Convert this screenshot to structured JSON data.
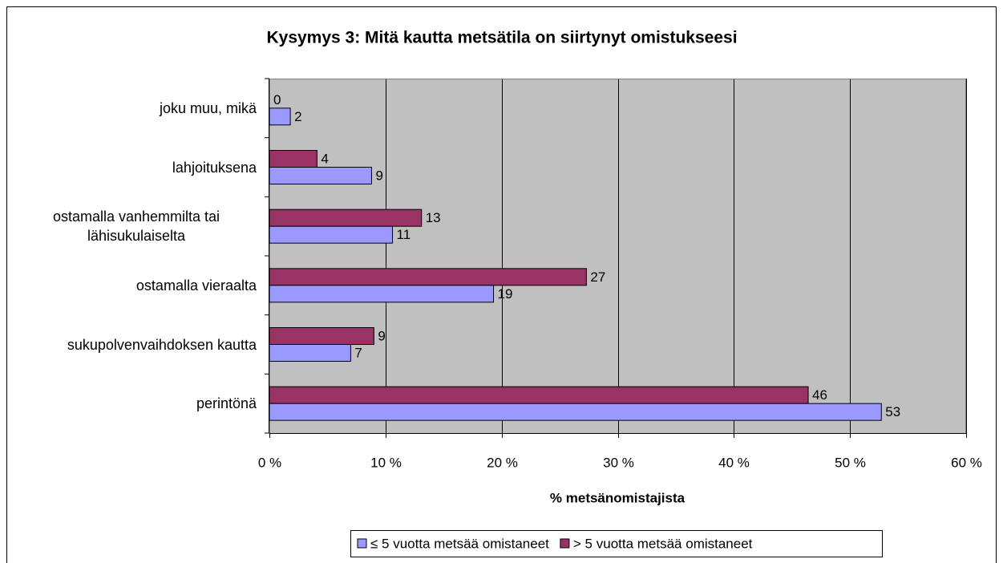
{
  "chart_data": {
    "type": "barh",
    "title": "Kysymys 3: Mitä kautta metsätila on siirtynyt omistukseesi",
    "x_label": "% metsänomistajista",
    "categories": [
      "joku muu, mikä",
      "lahjoituksena",
      "ostamalla vanhemmilta tai lähisukulaiselta",
      "ostamalla vieraalta",
      "sukupolvenvaihdoksen kautta",
      "perintönä"
    ],
    "series": [
      {
        "name": "≤ 5 vuotta metsää omistaneet",
        "color": "#9999ff",
        "values": [
          1.8,
          8.8,
          10.6,
          19.3,
          7.0,
          52.7
        ],
        "value_labels": [
          "2",
          "9",
          "11",
          "19",
          "7",
          "53"
        ]
      },
      {
        "name": "> 5 vuotta metsää omistaneet",
        "color": "#993366",
        "values": [
          0,
          4.1,
          13.1,
          27.3,
          9.0,
          46.4
        ],
        "value_labels": [
          "0",
          "4",
          "13",
          "27",
          "9",
          "46"
        ]
      }
    ],
    "xlim": [
      0,
      60
    ],
    "xticks": [
      {
        "value": 0,
        "label": "0 %"
      },
      {
        "value": 10,
        "label": "10 %"
      },
      {
        "value": 20,
        "label": "20 %"
      },
      {
        "value": 30,
        "label": "30 %"
      },
      {
        "value": 40,
        "label": "40 %"
      },
      {
        "value": 50,
        "label": "50 %"
      },
      {
        "value": 60,
        "label": "60 %"
      }
    ],
    "grid": true,
    "plot_background": "#c0c0c0",
    "legend": "bottom"
  }
}
